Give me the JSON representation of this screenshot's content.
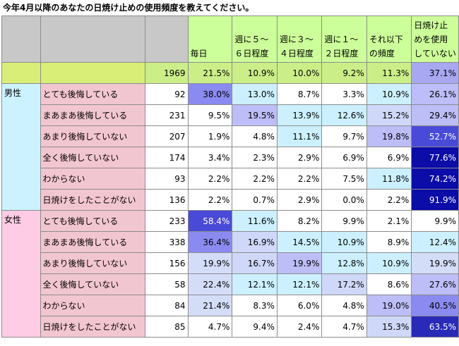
{
  "title": "今年4月以降のあなたの日焼け止めの使用頻度を教えてください。",
  "columns": [
    "毎日",
    "週に５～\n６日程度",
    "週に３～\n４日程度",
    "週に１～\n２日程度",
    "それ以下\nの頻度",
    "日焼け止\nめを使用\nしていない"
  ],
  "total": {
    "n": "1969",
    "values": [
      "21.5%",
      "10.9%",
      "10.0%",
      "9.2%",
      "11.3%",
      "37.1%"
    ]
  },
  "groups": [
    {
      "name": "男性",
      "rows": [
        {
          "label": "とても後悔している",
          "n": "92",
          "values": [
            "38.0%",
            "13.0%",
            "8.7%",
            "3.3%",
            "10.9%",
            "26.1%"
          ]
        },
        {
          "label": "まあまあ後悔している",
          "n": "231",
          "values": [
            "9.5%",
            "19.5%",
            "13.9%",
            "12.6%",
            "15.2%",
            "29.4%"
          ]
        },
        {
          "label": "あまり後悔していない",
          "n": "207",
          "values": [
            "1.9%",
            "4.8%",
            "11.1%",
            "9.7%",
            "19.8%",
            "52.7%"
          ]
        },
        {
          "label": "全く後悔していない",
          "n": "174",
          "values": [
            "3.4%",
            "2.3%",
            "2.9%",
            "6.9%",
            "6.9%",
            "77.6%"
          ]
        },
        {
          "label": "わからない",
          "n": "93",
          "values": [
            "2.2%",
            "2.2%",
            "2.2%",
            "7.5%",
            "11.8%",
            "74.2%"
          ]
        },
        {
          "label": "日焼けをしたことがない",
          "n": "136",
          "values": [
            "2.2%",
            "0.7%",
            "2.9%",
            "0.0%",
            "2.2%",
            "91.9%"
          ]
        }
      ]
    },
    {
      "name": "女性",
      "rows": [
        {
          "label": "とても後悔している",
          "n": "233",
          "values": [
            "58.4%",
            "11.6%",
            "8.2%",
            "9.9%",
            "2.1%",
            "9.9%"
          ]
        },
        {
          "label": "まあまあ後悔している",
          "n": "338",
          "values": [
            "36.4%",
            "16.9%",
            "14.5%",
            "10.9%",
            "8.9%",
            "12.4%"
          ]
        },
        {
          "label": "あまり後悔していない",
          "n": "156",
          "values": [
            "19.9%",
            "16.7%",
            "19.9%",
            "12.8%",
            "10.9%",
            "19.9%"
          ]
        },
        {
          "label": "全く後悔していない",
          "n": "58",
          "values": [
            "22.4%",
            "12.1%",
            "12.1%",
            "17.2%",
            "8.6%",
            "27.6%"
          ]
        },
        {
          "label": "わからない",
          "n": "84",
          "values": [
            "21.4%",
            "8.3%",
            "6.0%",
            "4.8%",
            "19.0%",
            "40.5%"
          ]
        },
        {
          "label": "日焼けをしたことがない",
          "n": "85",
          "values": [
            "4.7%",
            "9.4%",
            "2.4%",
            "4.7%",
            "15.3%",
            "63.5%"
          ]
        }
      ]
    }
  ]
}
